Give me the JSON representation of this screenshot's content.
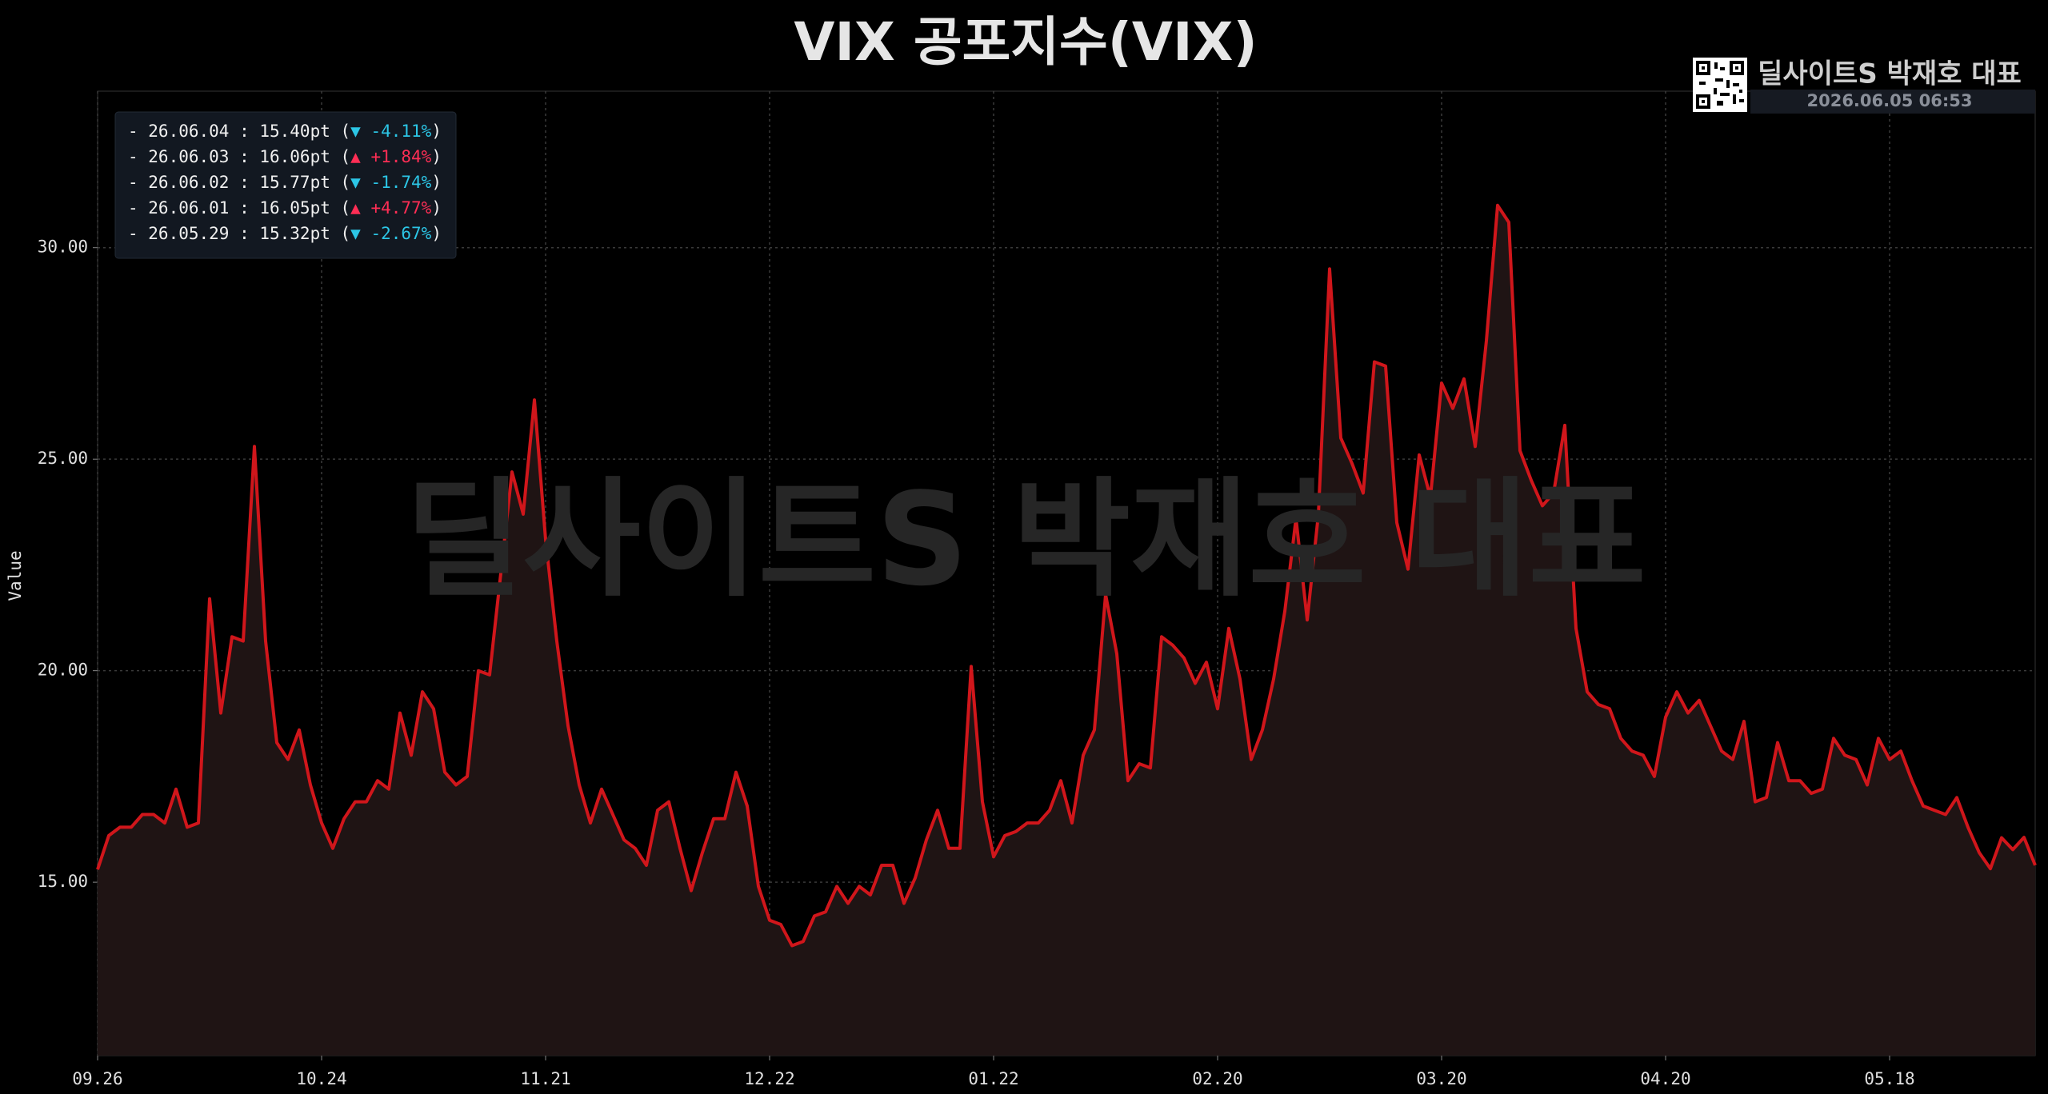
{
  "chart_data": {
    "type": "line",
    "title": "VIX 공포지수(VIX)",
    "y_label": "Value",
    "watermark": "딜사이트S 박재호 대표",
    "brand": "딜사이트S 박재호 대표",
    "timestamp": "2026.06.05 06:53",
    "color": "#d0161b",
    "fill_color": "#1f1414",
    "grid": true,
    "ylim": [
      10.9,
      33.7
    ],
    "yticks": [
      {
        "value": 15,
        "label": "15.00"
      },
      {
        "value": 20,
        "label": "20.00"
      },
      {
        "value": 25,
        "label": "25.00"
      },
      {
        "value": 30,
        "label": "30.00"
      }
    ],
    "categories": [
      "09.26",
      null,
      null,
      null,
      null,
      null,
      null,
      null,
      null,
      null,
      null,
      null,
      null,
      null,
      null,
      null,
      null,
      null,
      null,
      null,
      "10.24",
      null,
      null,
      null,
      null,
      null,
      null,
      null,
      null,
      null,
      null,
      null,
      null,
      null,
      null,
      null,
      null,
      null,
      null,
      null,
      "11.21",
      null,
      null,
      null,
      null,
      null,
      null,
      null,
      null,
      null,
      null,
      null,
      null,
      null,
      null,
      null,
      null,
      null,
      null,
      null,
      "12.22",
      null,
      null,
      null,
      null,
      null,
      null,
      null,
      null,
      null,
      null,
      null,
      null,
      null,
      null,
      null,
      null,
      null,
      null,
      null,
      "01.22",
      null,
      null,
      null,
      null,
      null,
      null,
      null,
      null,
      null,
      null,
      null,
      null,
      null,
      null,
      null,
      null,
      null,
      null,
      null,
      "02.20",
      null,
      null,
      null,
      null,
      null,
      null,
      null,
      null,
      null,
      null,
      null,
      null,
      null,
      null,
      null,
      null,
      null,
      null,
      null,
      "03.20",
      null,
      null,
      null,
      null,
      null,
      null,
      null,
      null,
      null,
      null,
      null,
      null,
      null,
      null,
      null,
      null,
      null,
      null,
      null,
      "04.20",
      null,
      null,
      null,
      null,
      null,
      null,
      null,
      null,
      null,
      null,
      null,
      null,
      null,
      null,
      null,
      null,
      null,
      null,
      null,
      "05.18",
      null,
      null,
      null,
      null,
      null,
      null,
      null,
      null,
      null,
      null,
      null,
      null,
      null
    ],
    "values": [
      15.3,
      16.1,
      16.3,
      16.3,
      16.6,
      16.6,
      16.4,
      17.2,
      16.3,
      16.4,
      21.7,
      19.0,
      20.8,
      20.7,
      25.3,
      20.7,
      18.3,
      17.9,
      18.6,
      17.3,
      16.4,
      15.8,
      16.5,
      16.9,
      16.9,
      17.4,
      17.2,
      19.0,
      18.0,
      19.5,
      19.1,
      17.6,
      17.3,
      17.5,
      20.0,
      19.9,
      22.3,
      24.7,
      23.7,
      26.4,
      23.1,
      20.7,
      18.7,
      17.3,
      16.4,
      17.2,
      16.6,
      16.0,
      15.8,
      15.4,
      16.7,
      16.9,
      15.8,
      14.8,
      15.7,
      16.5,
      16.5,
      17.6,
      16.8,
      14.9,
      14.1,
      14.0,
      13.5,
      13.6,
      14.2,
      14.3,
      14.9,
      14.5,
      14.9,
      14.7,
      15.4,
      15.4,
      14.5,
      15.1,
      16.0,
      16.7,
      15.8,
      15.8,
      20.1,
      16.9,
      15.6,
      16.1,
      16.2,
      16.4,
      16.4,
      16.7,
      17.4,
      16.4,
      18.0,
      18.6,
      21.8,
      20.4,
      17.4,
      17.8,
      17.7,
      20.8,
      20.6,
      20.3,
      19.7,
      20.2,
      19.1,
      21.0,
      19.8,
      17.9,
      18.6,
      19.8,
      21.4,
      23.6,
      21.2,
      23.7,
      29.5,
      25.5,
      24.9,
      24.2,
      27.3,
      27.2,
      23.5,
      22.4,
      25.1,
      24.1,
      26.8,
      26.2,
      26.9,
      25.3,
      27.8,
      31.0,
      30.6,
      25.2,
      24.5,
      23.9,
      24.2,
      25.8,
      21.0,
      19.5,
      19.2,
      19.1,
      18.4,
      18.1,
      18.0,
      17.5,
      18.9,
      19.5,
      19.0,
      19.3,
      18.7,
      18.1,
      17.9,
      18.8,
      16.9,
      17.0,
      18.3,
      17.4,
      17.4,
      17.1,
      17.2,
      18.4,
      18.0,
      17.9,
      17.3,
      18.4,
      17.9,
      18.1,
      17.4,
      16.8,
      16.7,
      16.6,
      17.0,
      16.3,
      15.7,
      15.32,
      16.05,
      15.77,
      16.06,
      15.4
    ],
    "recent": [
      {
        "prefix": "- 26.06.04 : 15.40pt (",
        "change": "▼ -4.11%",
        "suffix": ")",
        "color": "#2cc6e6"
      },
      {
        "prefix": "- 26.06.03 : 16.06pt (",
        "change": "▲ +1.84%",
        "suffix": ")",
        "color": "#ff2e55"
      },
      {
        "prefix": "- 26.06.02 : 15.77pt (",
        "change": "▼ -1.74%",
        "suffix": ")",
        "color": "#2cc6e6"
      },
      {
        "prefix": "- 26.06.01 : 16.05pt (",
        "change": "▲ +4.77%",
        "suffix": ")",
        "color": "#ff2e55"
      },
      {
        "prefix": "- 26.05.29 : 15.32pt (",
        "change": "▼ -2.67%",
        "suffix": ")",
        "color": "#2cc6e6"
      }
    ]
  }
}
